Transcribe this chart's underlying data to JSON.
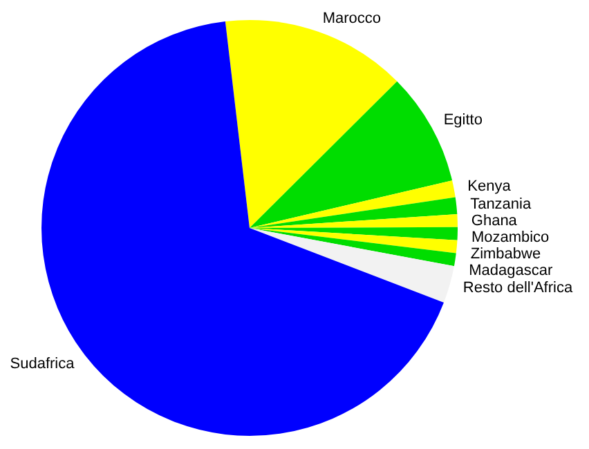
{
  "chart_data": {
    "type": "pie",
    "categories": [
      "Marocco",
      "Egitto",
      "Kenya",
      "Tanzania",
      "Ghana",
      "Mozambico",
      "Zimbabwe",
      "Madagascar",
      "Resto dell'Africa",
      "Sudafrica"
    ],
    "values": [
      14.4,
      8.8,
      1.3,
      1.3,
      1.0,
      1.0,
      1.0,
      1.0,
      2.9,
      67.3
    ],
    "colors": [
      "#ffff00",
      "#00dd00",
      "#ffff00",
      "#00dd00",
      "#ffff00",
      "#00dd00",
      "#ffff00",
      "#00dd00",
      "#f2f2f2",
      "#0000ff"
    ],
    "legend": false
  }
}
